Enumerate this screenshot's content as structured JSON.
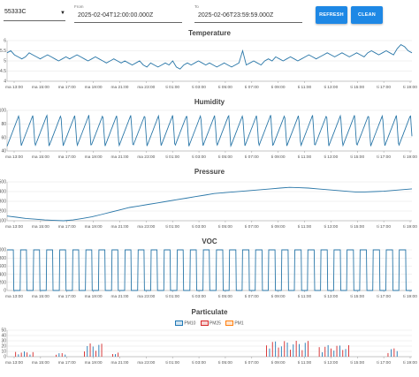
{
  "controls": {
    "device": "55333C",
    "from_label": "From",
    "from_value": "2025-02-04T12:00:00.000Z",
    "to_label": "To",
    "to_value": "2025-02-06T23:59:59.000Z",
    "refresh_label": "REFRESH",
    "clean_label": "CLEAN"
  },
  "colors": {
    "line": "#2a77a8",
    "button": "#1e88e5",
    "pm10": "#1f77b4",
    "pm25": "#d62728",
    "pm1": "#ff7f0e"
  },
  "x_ticks": [
    "ma 13:00",
    "ma 15:00",
    "ma 17:00",
    "ma 19:00",
    "ma 21:00",
    "ma 23:00",
    "ti 01:00",
    "ti 03:00",
    "ti 05:00",
    "ti 07:00",
    "ti 09:00",
    "ti 11:00",
    "ti 13:00",
    "ti 15:00",
    "ti 17:00",
    "ti 19:00",
    "ti 21:00",
    "ti 23:00",
    "ke 01:00",
    "ke 03:00",
    "ke 05:00",
    "ke 07:00",
    "ke 09:00",
    "ke 11:00",
    "ke 13:00",
    "ke 15:00",
    "ke 17:00",
    "ke 19:00"
  ],
  "chart_data": [
    {
      "type": "line",
      "title": "Temperature",
      "yticks": [
        "6",
        "5.5",
        "5",
        "4.5",
        "4"
      ],
      "ylim": [
        4,
        6
      ],
      "x_ticks_shown": [
        "ma 13:00",
        "ma 15:00",
        "ma 17:00",
        "ma 19:00",
        "ma 21:00",
        "ma 23:00",
        "ti 01:00",
        "ti 03:00",
        "ti 05:00",
        "ti 07:00",
        "ti 09:00",
        "ti 11:00",
        "ti 13:00",
        "ti 15:00",
        "ti 17:00",
        "ti 19:00"
      ],
      "values": [
        5.4,
        5.5,
        5.3,
        5.2,
        5.1,
        5.2,
        5.4,
        5.3,
        5.2,
        5.1,
        5.2,
        5.3,
        5.2,
        5.1,
        5.0,
        5.1,
        5.2,
        5.1,
        5.2,
        5.3,
        5.2,
        5.1,
        5.0,
        5.1,
        5.2,
        5.1,
        5.0,
        4.9,
        5.0,
        5.1,
        5.0,
        4.9,
        5.0,
        4.9,
        4.8,
        4.9,
        5.0,
        4.8,
        4.7,
        4.9,
        4.8,
        4.7,
        4.8,
        4.9,
        4.8,
        5.0,
        4.7,
        4.6,
        4.8,
        4.9,
        4.8,
        4.9,
        5.0,
        4.9,
        4.8,
        4.9,
        4.8,
        4.7,
        4.8,
        4.9,
        4.8,
        4.7,
        4.8,
        4.9,
        5.5,
        4.8,
        4.9,
        5.0,
        4.9,
        4.8,
        5.0,
        5.1,
        5.0,
        5.2,
        5.1,
        5.0,
        5.1,
        5.2,
        5.1,
        5.0,
        5.1,
        5.2,
        5.3,
        5.2,
        5.1,
        5.2,
        5.3,
        5.4,
        5.3,
        5.2,
        5.3,
        5.4,
        5.3,
        5.2,
        5.3,
        5.4,
        5.3,
        5.2,
        5.4,
        5.5,
        5.4,
        5.3,
        5.4,
        5.5,
        5.4,
        5.3,
        5.6,
        5.8,
        5.7,
        5.5,
        5.4
      ]
    },
    {
      "type": "line",
      "title": "Humidity",
      "yticks": [
        "100",
        "80",
        "60",
        "40"
      ],
      "ylim": [
        40,
        100
      ],
      "x_ticks_shown": [
        "ma 13:00",
        "ma 15:00",
        "ma 17:00",
        "ma 19:00",
        "ma 21:00",
        "ma 23:00",
        "ti 01:00",
        "ti 03:00",
        "ti 05:00",
        "ti 07:00",
        "ti 09:00",
        "ti 11:00",
        "ti 13:00",
        "ti 15:00",
        "ti 17:00",
        "ti 19:00"
      ],
      "cycles": 29,
      "min": 47,
      "max": 93
    },
    {
      "type": "line",
      "title": "Pressure",
      "yticks": [
        "101,500",
        "101,400",
        "101,300",
        "101,200",
        "101,100"
      ],
      "ylim": [
        101050,
        101550
      ],
      "x_ticks_shown": [
        "ma 13:00",
        "ma 15:00",
        "ma 17:00",
        "ma 19:00",
        "ma 21:00",
        "ma 23:00",
        "ti 01:00",
        "ti 03:00",
        "ti 05:00",
        "ti 07:00",
        "ti 09:00",
        "ti 11:00",
        "ti 13:00",
        "ti 15:00",
        "ti 17:00",
        "ti 19:00"
      ],
      "values": [
        101110,
        101095,
        101080,
        101070,
        101060,
        101055,
        101050,
        101060,
        101080,
        101100,
        101130,
        101160,
        101190,
        101220,
        101240,
        101260,
        101280,
        101300,
        101320,
        101340,
        101360,
        101380,
        101400,
        101410,
        101420,
        101430,
        101440,
        101450,
        101460,
        101470,
        101480,
        101475,
        101470,
        101460,
        101450,
        101440,
        101430,
        101420,
        101420,
        101425,
        101430,
        101440,
        101450,
        101460
      ]
    },
    {
      "type": "line",
      "title": "VOC",
      "yticks": [
        "1000",
        "800",
        "600",
        "400",
        "200",
        "0"
      ],
      "ylim": [
        0,
        1000
      ],
      "x_ticks_shown": [
        "ma 13:00",
        "ma 15:00",
        "ma 17:00",
        "ma 19:00",
        "ma 21:00",
        "ma 23:00",
        "ti 01:00",
        "ti 03:00",
        "ti 05:00",
        "ti 07:00",
        "ti 09:00",
        "ti 11:00",
        "ti 13:00",
        "ti 15:00",
        "ti 17:00",
        "ti 19:00"
      ],
      "cycles": 31,
      "min": 0,
      "max": 1000
    },
    {
      "type": "bar",
      "title": "Particulate",
      "yticks": [
        "50",
        "40",
        "30",
        "20",
        "10",
        "0"
      ],
      "ylim": [
        0,
        50
      ],
      "x_ticks_shown": [
        "ma 13:00",
        "ma 15:00",
        "ma 17:00",
        "ma 19:00",
        "ma 21:00",
        "ma 23:00",
        "ti 01:00",
        "ti 03:00",
        "ti 05:00",
        "ti 07:00",
        "ti 09:00",
        "ti 11:00",
        "ti 13:00",
        "ti 15:00",
        "ti 17:00",
        "ti 19:00"
      ],
      "series": [
        {
          "name": "PM10"
        },
        {
          "name": "PM25"
        },
        {
          "name": "PM1"
        }
      ],
      "bursts": [
        {
          "x": 0.02,
          "width": 0.05,
          "max": 10
        },
        {
          "x": 0.12,
          "width": 0.03,
          "max": 7
        },
        {
          "x": 0.19,
          "width": 0.05,
          "max": 25
        },
        {
          "x": 0.26,
          "width": 0.02,
          "max": 8
        },
        {
          "x": 0.64,
          "width": 0.11,
          "max": 30
        },
        {
          "x": 0.77,
          "width": 0.08,
          "max": 22
        },
        {
          "x": 0.94,
          "width": 0.03,
          "max": 16
        }
      ]
    }
  ]
}
